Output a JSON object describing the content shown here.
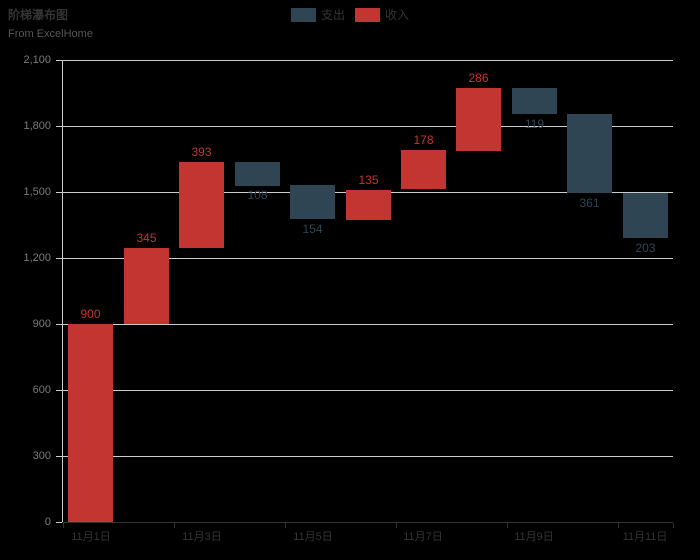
{
  "colors": {
    "background": "#000000",
    "income": "#c23531",
    "expense": "#2f4554",
    "grid_line": "#cccccc",
    "y_axis_line": "#cccccc",
    "x_axis_line": "#333333",
    "y_label": "#7a7a7a",
    "x_label": "#333333",
    "title": "#333333",
    "subtitle": "#565656",
    "legend_text": "#333333"
  },
  "chart_data": {
    "type": "bar",
    "subtype": "waterfall",
    "title": "阶梯瀑布图",
    "subtitle": "From ExcelHome",
    "legend": [
      {
        "label": "支出",
        "color": "#2f4554"
      },
      {
        "label": "收入",
        "color": "#c23531"
      }
    ],
    "n_categories": 11,
    "x_axis": {
      "tick_labels": [
        "11月1日",
        "11月3日",
        "11月5日",
        "11月7日",
        "11月9日",
        "11月11日"
      ],
      "label_category_indices": [
        0,
        2,
        4,
        6,
        8,
        10
      ]
    },
    "y_axis": {
      "min": 0,
      "max": 2100,
      "step": 300,
      "tick_labels": [
        "0",
        "300",
        "600",
        "900",
        "1,200",
        "1,500",
        "1,800",
        "2,100"
      ]
    },
    "series": [
      {
        "name": "收入",
        "role": "increase",
        "color": "#c23531",
        "label_position": "top",
        "values": [
          900,
          345,
          393,
          null,
          null,
          135,
          178,
          286,
          null,
          null,
          null
        ]
      },
      {
        "name": "支出",
        "role": "decrease",
        "color": "#2f4554",
        "label_position": "bottom",
        "values": [
          null,
          null,
          null,
          108,
          154,
          null,
          null,
          null,
          119,
          361,
          203
        ]
      }
    ],
    "cumulative_totals": [
      900,
      1245,
      1638,
      1530,
      1376,
      1511,
      1689,
      1975,
      1856,
      1495,
      1292
    ],
    "grid": "horizontal-lines-on"
  }
}
